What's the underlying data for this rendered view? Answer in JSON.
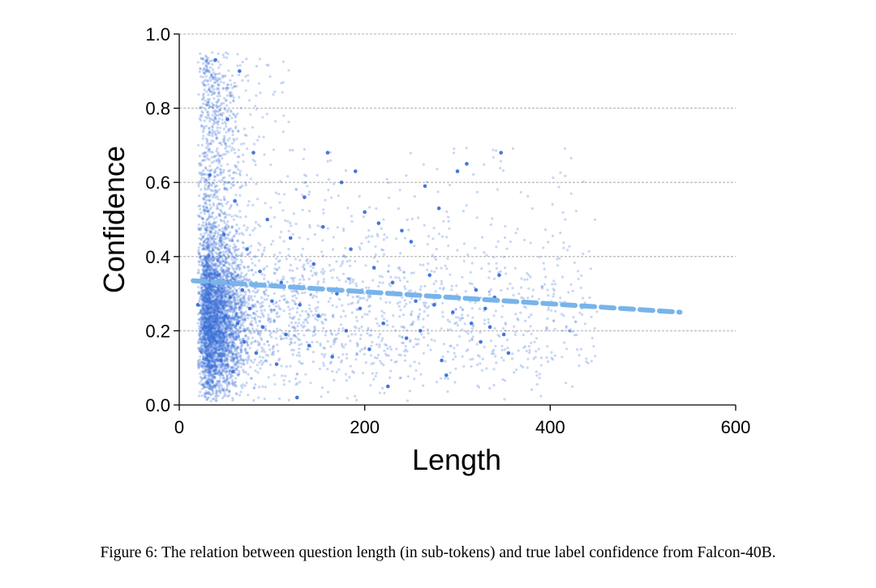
{
  "chart_data": {
    "type": "scatter",
    "xlabel": "Length",
    "ylabel": "Confidence",
    "xlim": [
      0,
      600
    ],
    "ylim": [
      0.0,
      1.0
    ],
    "xticks": [
      0,
      200,
      400,
      600
    ],
    "xtick_labels": [
      "0",
      "200",
      "400",
      "600"
    ],
    "yticks": [
      0.0,
      0.2,
      0.4,
      0.6,
      0.8,
      1.0
    ],
    "ytick_labels": [
      "0.0",
      "0.2",
      "0.4",
      "0.6",
      "0.8",
      "1.0"
    ],
    "grid": "horizontal dashed",
    "colors": {
      "points": "#3a6fd8",
      "trend": "#78b4ea",
      "grid": "#999999"
    },
    "trend_line": {
      "style": "dashed",
      "x": [
        15,
        540
      ],
      "y": [
        0.335,
        0.25
      ]
    },
    "highlighted_points": [
      {
        "x": 20,
        "y": 0.27
      },
      {
        "x": 28,
        "y": 0.21
      },
      {
        "x": 33,
        "y": 0.62
      },
      {
        "x": 37,
        "y": 0.18
      },
      {
        "x": 39,
        "y": 0.93
      },
      {
        "x": 42,
        "y": 0.35
      },
      {
        "x": 45,
        "y": 0.12
      },
      {
        "x": 48,
        "y": 0.46
      },
      {
        "x": 50,
        "y": 0.24
      },
      {
        "x": 52,
        "y": 0.77
      },
      {
        "x": 55,
        "y": 0.29
      },
      {
        "x": 58,
        "y": 0.09
      },
      {
        "x": 60,
        "y": 0.55
      },
      {
        "x": 63,
        "y": 0.22
      },
      {
        "x": 65,
        "y": 0.9
      },
      {
        "x": 68,
        "y": 0.31
      },
      {
        "x": 70,
        "y": 0.17
      },
      {
        "x": 73,
        "y": 0.42
      },
      {
        "x": 76,
        "y": 0.26
      },
      {
        "x": 80,
        "y": 0.68
      },
      {
        "x": 83,
        "y": 0.14
      },
      {
        "x": 87,
        "y": 0.36
      },
      {
        "x": 90,
        "y": 0.21
      },
      {
        "x": 95,
        "y": 0.5
      },
      {
        "x": 100,
        "y": 0.28
      },
      {
        "x": 105,
        "y": 0.11
      },
      {
        "x": 110,
        "y": 0.33
      },
      {
        "x": 115,
        "y": 0.19
      },
      {
        "x": 120,
        "y": 0.45
      },
      {
        "x": 127,
        "y": 0.02
      },
      {
        "x": 130,
        "y": 0.27
      },
      {
        "x": 135,
        "y": 0.56
      },
      {
        "x": 140,
        "y": 0.16
      },
      {
        "x": 145,
        "y": 0.38
      },
      {
        "x": 150,
        "y": 0.24
      },
      {
        "x": 155,
        "y": 0.48
      },
      {
        "x": 160,
        "y": 0.68
      },
      {
        "x": 165,
        "y": 0.13
      },
      {
        "x": 170,
        "y": 0.3
      },
      {
        "x": 175,
        "y": 0.6
      },
      {
        "x": 180,
        "y": 0.2
      },
      {
        "x": 185,
        "y": 0.42
      },
      {
        "x": 190,
        "y": 0.63
      },
      {
        "x": 195,
        "y": 0.26
      },
      {
        "x": 200,
        "y": 0.52
      },
      {
        "x": 205,
        "y": 0.15
      },
      {
        "x": 210,
        "y": 0.37
      },
      {
        "x": 215,
        "y": 0.49
      },
      {
        "x": 220,
        "y": 0.22
      },
      {
        "x": 225,
        "y": 0.05
      },
      {
        "x": 230,
        "y": 0.33
      },
      {
        "x": 240,
        "y": 0.47
      },
      {
        "x": 245,
        "y": 0.18
      },
      {
        "x": 250,
        "y": 0.44
      },
      {
        "x": 255,
        "y": 0.28
      },
      {
        "x": 260,
        "y": 0.2
      },
      {
        "x": 265,
        "y": 0.59
      },
      {
        "x": 270,
        "y": 0.35
      },
      {
        "x": 275,
        "y": 0.27
      },
      {
        "x": 280,
        "y": 0.53
      },
      {
        "x": 283,
        "y": 0.12
      },
      {
        "x": 288,
        "y": 0.08
      },
      {
        "x": 295,
        "y": 0.25
      },
      {
        "x": 300,
        "y": 0.63
      },
      {
        "x": 310,
        "y": 0.65
      },
      {
        "x": 315,
        "y": 0.22
      },
      {
        "x": 320,
        "y": 0.31
      },
      {
        "x": 325,
        "y": 0.17
      },
      {
        "x": 330,
        "y": 0.26
      },
      {
        "x": 335,
        "y": 0.21
      },
      {
        "x": 340,
        "y": 0.29
      },
      {
        "x": 345,
        "y": 0.35
      },
      {
        "x": 347,
        "y": 0.68
      },
      {
        "x": 350,
        "y": 0.19
      },
      {
        "x": 355,
        "y": 0.14
      }
    ]
  },
  "caption": "Figure 6: The relation between question length (in sub-tokens) and true label confidence from Falcon-40B."
}
